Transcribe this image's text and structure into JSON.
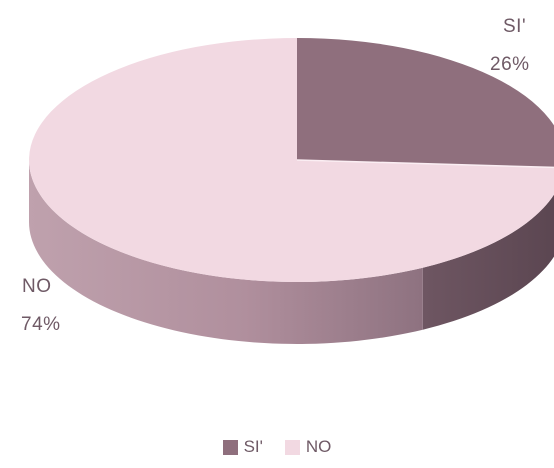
{
  "chart_data": {
    "type": "pie",
    "categories": [
      "SI'",
      "NO"
    ],
    "values": [
      26,
      74
    ],
    "value_labels": [
      "26%",
      "74%"
    ],
    "colors": [
      "#8f6f7d",
      "#f2d9e2"
    ],
    "legend_position": "bottom",
    "legend": [
      "SI'",
      "NO"
    ],
    "style": "3d-tilted"
  }
}
